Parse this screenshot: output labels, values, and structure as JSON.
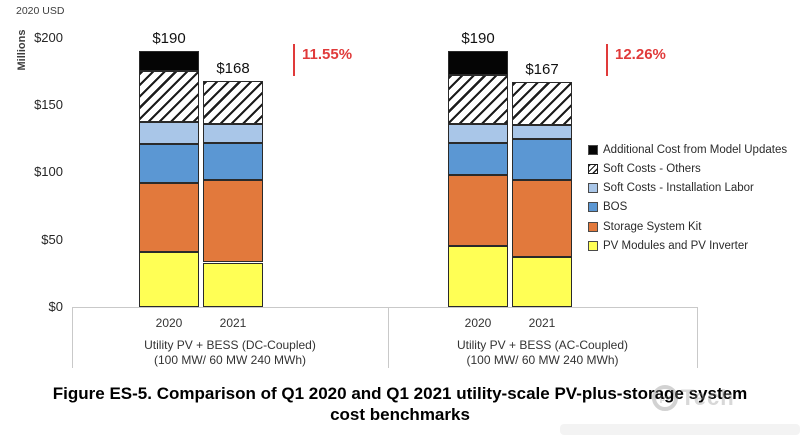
{
  "axis": {
    "units_label": "2020 USD",
    "axis_title": "Millions"
  },
  "chart_data": {
    "type": "bar",
    "stacked": true,
    "title": "Figure ES-5. Comparison of Q1 2020 and Q1 2021 utility-scale PV-plus-storage system cost benchmarks",
    "title_lines": [
      "Figure ES-5. Comparison of Q1 2020 and Q1 2021 utility-scale PV-plus-storage system",
      "cost benchmarks"
    ],
    "ylabel": "2020 USD Millions",
    "ylim": [
      0,
      200
    ],
    "grid": false,
    "legend_position": "right",
    "yticks": [
      {
        "value": 0,
        "label": "$0"
      },
      {
        "value": 50,
        "label": "$50"
      },
      {
        "value": 100,
        "label": "$100"
      },
      {
        "value": 150,
        "label": "$150"
      },
      {
        "value": 200,
        "label": "$200"
      }
    ],
    "bar_labels": [
      "2020",
      "2021",
      "2020",
      "2021"
    ],
    "bar_totals": [
      190,
      168,
      190,
      167
    ],
    "bar_total_labels": [
      "$190",
      "$168",
      "$190",
      "$167"
    ],
    "groups": [
      {
        "line1": "Utility PV + BESS (DC-Coupled)",
        "line2": "(100 MW/ 60 MW 240 MWh)"
      },
      {
        "line1": "Utility PV + BESS (AC-Coupled)",
        "line2": "(100 MW/ 60 MW 240 MWh)"
      }
    ],
    "series": [
      {
        "name": "PV Modules and PV Inverter",
        "color": "#FFFF55",
        "pattern": "solid",
        "values": [
          41,
          33,
          45,
          37
        ]
      },
      {
        "name": "Storage System Kit",
        "color": "#E2793C",
        "pattern": "solid",
        "values": [
          51,
          61,
          53,
          57
        ]
      },
      {
        "name": "BOS",
        "color": "#5B97D3",
        "pattern": "solid",
        "values": [
          29,
          28,
          24,
          31
        ]
      },
      {
        "name": "Soft Costs - Installation Labor",
        "color": "#A9C6E8",
        "pattern": "solid",
        "values": [
          16,
          14,
          14,
          10
        ]
      },
      {
        "name": "Soft Costs - Others",
        "color": "#FFFFFF",
        "pattern": "hatch",
        "values": [
          38,
          32,
          36,
          32
        ]
      },
      {
        "name": "Additional Cost from Model Updates",
        "color": "#050505",
        "pattern": "solid",
        "values": [
          15,
          0,
          18,
          0
        ]
      }
    ],
    "annotations": [
      {
        "text": "11.55%",
        "color": "#E03A3A"
      },
      {
        "text": "12.26%",
        "color": "#E03A3A"
      }
    ]
  },
  "watermark": {
    "logo_text": "pv",
    "brand_text": "Tech"
  }
}
